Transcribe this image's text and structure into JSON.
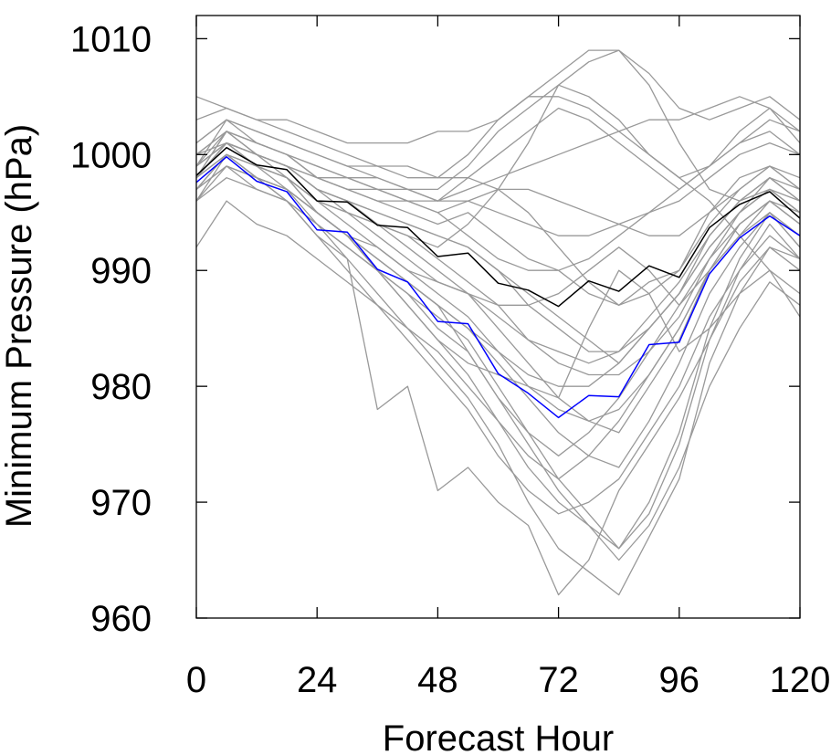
{
  "chart_data": {
    "type": "line",
    "title": "",
    "xlabel": "Forecast Hour",
    "ylabel": "Minimum Pressure (hPa)",
    "xlim": [
      0,
      120
    ],
    "ylim": [
      960,
      1012
    ],
    "x_ticks": [
      0,
      24,
      48,
      72,
      96,
      120
    ],
    "x_tick_labels": [
      "0",
      "24",
      "48",
      "72",
      "96",
      "120"
    ],
    "y_ticks": [
      960,
      970,
      980,
      990,
      1000,
      1010
    ],
    "y_tick_labels": [
      "960",
      "970",
      "980",
      "990",
      "1000",
      "1010"
    ],
    "grid": false,
    "legend": "none",
    "x": [
      0,
      6,
      12,
      18,
      24,
      30,
      36,
      42,
      48,
      54,
      60,
      66,
      72,
      78,
      84,
      90,
      96,
      102,
      108,
      114,
      120
    ],
    "series": [
      {
        "color": "#000000",
        "values": [
          998.2,
          1000.6,
          999.1,
          998.7,
          996.0,
          995.9,
          993.9,
          993.7,
          991.2,
          991.5,
          988.9,
          988.3,
          986.9,
          989.1,
          988.2,
          990.4,
          989.4,
          993.7,
          995.7,
          996.8,
          994.5
        ]
      },
      {
        "color": "#0000ff",
        "values": [
          997.6,
          999.8,
          997.7,
          996.8,
          993.5,
          993.3,
          990.1,
          989.0,
          985.6,
          985.4,
          981.1,
          979.4,
          977.3,
          979.2,
          979.1,
          983.6,
          983.8,
          989.7,
          992.8,
          994.7,
          993.0
        ]
      },
      {
        "color": "#999999",
        "values": [
          999,
          1001,
          1000,
          999,
          997,
          996,
          995,
          994,
          993,
          992,
          990,
          988,
          986,
          984,
          982,
          985,
          988,
          993,
          996,
          998,
          996
        ]
      },
      {
        "color": "#999999",
        "values": [
          998,
          1002,
          1000,
          998,
          995,
          993,
          990,
          987,
          984,
          981,
          977,
          973,
          970,
          968,
          966,
          970,
          976,
          985,
          991,
          995,
          992
        ]
      },
      {
        "color": "#999999",
        "values": [
          997,
          999,
          998,
          997,
          994,
          992,
          990,
          988,
          986,
          984,
          980,
          976,
          972,
          969,
          966,
          969,
          975,
          984,
          990,
          994,
          991
        ]
      },
      {
        "color": "#999999",
        "values": [
          996,
          1000,
          998,
          996,
          993,
          991,
          988,
          985,
          982,
          979,
          975,
          970,
          966,
          964,
          962,
          967,
          972,
          982,
          988,
          992,
          990
        ]
      },
      {
        "color": "#999999",
        "values": [
          999,
          1003,
          1001,
          1000,
          998,
          997,
          996,
          995,
          994,
          995,
          993,
          991,
          990,
          988,
          987,
          989,
          990,
          995,
          998,
          999,
          997
        ]
      },
      {
        "color": "#999999",
        "values": [
          1000,
          1002,
          1001,
          1000,
          999,
          998,
          998,
          997,
          996,
          998,
          1000,
          1002,
          1004,
          1003,
          1001,
          999,
          997,
          999,
          1002,
          1004,
          1001
        ]
      },
      {
        "color": "#999999",
        "values": [
          998,
          1001,
          999,
          998,
          996,
          995,
          994,
          993,
          992,
          994,
          997,
          1001,
          1006,
          1008,
          1009,
          1006,
          1001,
          997,
          996,
          997,
          995
        ]
      },
      {
        "color": "#999999",
        "values": [
          1001,
          1003,
          1002,
          1001,
          1000,
          999,
          999,
          998,
          998,
          1000,
          1003,
          1005,
          1007,
          1009,
          1009,
          1007,
          1004,
          1003,
          1004,
          1005,
          1003
        ]
      },
      {
        "color": "#999999",
        "values": [
          1005,
          1004,
          1003,
          1003,
          1002,
          1001,
          1001,
          1001,
          1002,
          1002,
          1003,
          1005,
          1005,
          1004,
          1002,
          1000,
          998,
          999,
          1001,
          1003,
          1002
        ]
      },
      {
        "color": "#999999",
        "values": [
          997,
          999,
          998,
          997,
          995,
          993,
          991,
          989,
          987,
          983,
          979,
          975,
          971,
          968,
          965,
          968,
          973,
          980,
          985,
          989,
          987
        ]
      },
      {
        "color": "#999999",
        "values": [
          996,
          998,
          997,
          996,
          994,
          991,
          978,
          980,
          971,
          973,
          970,
          968,
          962,
          965,
          971,
          975,
          979,
          984,
          989,
          992,
          991
        ]
      },
      {
        "color": "#999999",
        "values": [
          998,
          1000,
          999,
          998,
          996,
          995,
          994,
          992,
          990,
          988,
          985,
          982,
          979,
          977,
          976,
          980,
          984,
          990,
          994,
          996,
          994
        ]
      },
      {
        "color": "#999999",
        "values": [
          997,
          1000,
          998,
          997,
          995,
          993,
          991,
          989,
          987,
          985,
          982,
          979,
          976,
          974,
          973,
          977,
          982,
          988,
          992,
          995,
          993
        ]
      },
      {
        "color": "#999999",
        "values": [
          999,
          1002,
          1001,
          1000,
          998,
          997,
          996,
          996,
          995,
          996,
          997,
          995,
          992,
          989,
          987,
          988,
          990,
          994,
          997,
          999,
          997
        ]
      },
      {
        "color": "#999999",
        "values": [
          1000,
          1001,
          1000,
          999,
          997,
          996,
          995,
          994,
          993,
          992,
          990,
          987,
          985,
          983,
          983,
          985,
          988,
          992,
          995,
          997,
          996
        ]
      },
      {
        "color": "#999999",
        "values": [
          998,
          1001,
          999,
          998,
          996,
          994,
          992,
          990,
          988,
          986,
          983,
          980,
          978,
          977,
          978,
          981,
          985,
          990,
          994,
          996,
          995
        ]
      },
      {
        "color": "#999999",
        "values": [
          996,
          999,
          997,
          996,
          993,
          990,
          987,
          984,
          981,
          978,
          974,
          971,
          969,
          970,
          972,
          976,
          980,
          986,
          990,
          993,
          991
        ]
      },
      {
        "color": "#999999",
        "values": [
          999,
          1001,
          1000,
          999,
          998,
          997,
          997,
          996,
          996,
          997,
          998,
          999,
          1000,
          1001,
          1002,
          1003,
          1003,
          1004,
          1005,
          1004,
          1002
        ]
      },
      {
        "color": "#999999",
        "values": [
          1001,
          1003,
          1002,
          1001,
          1000,
          999,
          998,
          997,
          996,
          996,
          995,
          994,
          993,
          993,
          994,
          995,
          996,
          998,
          1000,
          1001,
          1000
        ]
      },
      {
        "color": "#999999",
        "values": [
          997,
          1000,
          999,
          997,
          995,
          993,
          991,
          989,
          987,
          985,
          983,
          981,
          980,
          980,
          982,
          985,
          988,
          992,
          995,
          997,
          995
        ]
      },
      {
        "color": "#999999",
        "values": [
          998,
          1002,
          1000,
          999,
          997,
          995,
          993,
          991,
          989,
          988,
          986,
          984,
          983,
          982,
          983,
          986,
          989,
          993,
          996,
          998,
          997
        ]
      },
      {
        "color": "#999999",
        "values": [
          992,
          996,
          994,
          993,
          991,
          989,
          987,
          985,
          983,
          980,
          977,
          974,
          972,
          974,
          977,
          981,
          985,
          990,
          993,
          996,
          994
        ]
      },
      {
        "color": "#999999",
        "values": [
          1003,
          1004,
          1003,
          1002,
          1001,
          1000,
          999,
          999,
          998,
          998,
          997,
          997,
          996,
          995,
          994,
          993,
          993,
          995,
          997,
          999,
          998
        ]
      },
      {
        "color": "#999999",
        "values": [
          999,
          1001,
          999,
          998,
          995,
          993,
          990,
          987,
          984,
          982,
          981,
          980,
          979,
          985,
          990,
          988,
          983,
          985,
          988,
          990,
          986
        ]
      },
      {
        "color": "#999999",
        "values": [
          998,
          1000,
          998,
          997,
          995,
          993,
          992,
          990,
          989,
          988,
          987,
          987,
          988,
          990,
          992,
          990,
          987,
          990,
          993,
          995,
          992
        ]
      },
      {
        "color": "#999999",
        "values": [
          997,
          999,
          998,
          996,
          994,
          992,
          990,
          988,
          985,
          983,
          979,
          976,
          974,
          976,
          979,
          983,
          987,
          991,
          994,
          996,
          994
        ]
      },
      {
        "color": "#999999",
        "values": [
          1000,
          1002,
          1001,
          1000,
          999,
          998,
          997,
          996,
          995,
          993,
          991,
          990,
          990,
          991,
          993,
          995,
          997,
          999,
          1001,
          1002,
          1000
        ]
      },
      {
        "color": "#999999",
        "values": [
          999,
          1001,
          1000,
          999,
          997,
          996,
          994,
          993,
          991,
          989,
          987,
          984,
          982,
          981,
          981,
          983,
          986,
          991,
          995,
          998,
          996
        ]
      },
      {
        "color": "#999999",
        "values": [
          998,
          1001,
          1000,
          999,
          998,
          998,
          997,
          997,
          997,
          999,
          1002,
          1004,
          1006,
          1005,
          1003,
          1000,
          998,
          996,
          993,
          990,
          988
        ]
      }
    ]
  }
}
